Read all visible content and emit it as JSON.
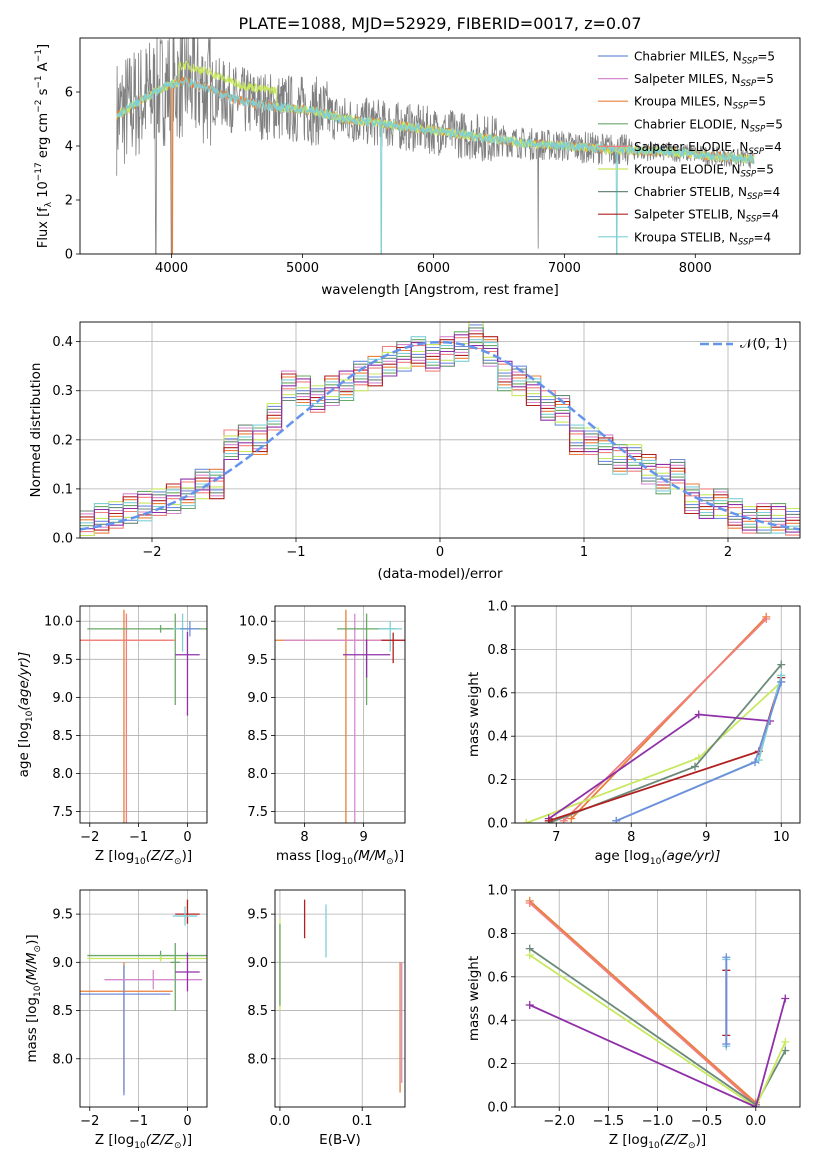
{
  "title": "PLATE=1088, MJD=52929, FIBERID=0017, z=0.07",
  "series_colors": {
    "Chabrier MILES": "#6f8fdc",
    "Salpeter MILES": "#d58ad0",
    "Kroupa MILES": "#e8803a",
    "Chabrier ELODIE": "#6aa86a",
    "Salpeter ELODIE": "#f07f7f",
    "Kroupa ELODIE": "#c8e860",
    "Chabrier STELIB": "#6b8a7a",
    "Salpeter STELIB": "#b22020",
    "Kroupa STELIB": "#7fd0d6",
    "extra": "#9030a8",
    "data": "#808080"
  },
  "chart_data": [
    {
      "id": "spectrum",
      "type": "line",
      "xlabel": "wavelength [Angstrom, rest frame]",
      "ylabel": "Flux [f",
      "ylabel_tail": " 10",
      "ylabel_unit": " erg cm",
      "ylabel_end": " s",
      "ylabel_last": " A",
      "xlim": [
        3300,
        8800
      ],
      "ylim": [
        0,
        8
      ],
      "xticks": [
        "4000",
        "5000",
        "6000",
        "7000",
        "8000"
      ],
      "yticks": [
        "0",
        "2",
        "4",
        "6"
      ],
      "legend": [
        {
          "label": "Chabrier MILES, N",
          "n": "5"
        },
        {
          "label": "Salpeter MILES, N",
          "n": "5"
        },
        {
          "label": "Kroupa MILES, N",
          "n": "5"
        },
        {
          "label": "Chabrier ELODIE, N",
          "n": "5"
        },
        {
          "label": "Salpeter ELODIE, N",
          "n": "4"
        },
        {
          "label": "Kroupa ELODIE, N",
          "n": "5"
        },
        {
          "label": "Chabrier STELIB, N",
          "n": "4"
        },
        {
          "label": "Salpeter STELIB, N",
          "n": "4"
        },
        {
          "label": "Kroupa STELIB, N",
          "n": "4"
        }
      ],
      "legend_sub": "SSP",
      "continuum": [
        [
          3580,
          5.1
        ],
        [
          3700,
          5.5
        ],
        [
          3800,
          5.8
        ],
        [
          3950,
          6.2
        ],
        [
          4100,
          6.4
        ],
        [
          4300,
          6.1
        ],
        [
          4500,
          5.7
        ],
        [
          4700,
          5.5
        ],
        [
          4900,
          5.4
        ],
        [
          5100,
          5.3
        ],
        [
          5300,
          5.0
        ],
        [
          5500,
          4.9
        ],
        [
          5800,
          4.7
        ],
        [
          6100,
          4.5
        ],
        [
          6400,
          4.3
        ],
        [
          6700,
          4.1
        ],
        [
          7000,
          4.0
        ],
        [
          7300,
          3.9
        ],
        [
          7600,
          3.8
        ],
        [
          7900,
          3.75
        ],
        [
          8200,
          3.6
        ],
        [
          8450,
          3.5
        ]
      ]
    },
    {
      "id": "residuals",
      "type": "step",
      "xlabel": "(data-model)/error",
      "ylabel": "Normed distribution",
      "xlim": [
        -2.5,
        2.5
      ],
      "ylim": [
        0,
        0.44
      ],
      "xticks": [
        "−2",
        "−1",
        "0",
        "1",
        "2"
      ],
      "yticks": [
        "0.0",
        "0.1",
        "0.2",
        "0.3",
        "0.4"
      ],
      "legend": "𝒩(0, 1)",
      "bins": [
        -2.5,
        -2.4,
        -2.3,
        -2.2,
        -2.1,
        -2.0,
        -1.9,
        -1.8,
        -1.7,
        -1.6,
        -1.5,
        -1.4,
        -1.3,
        -1.2,
        -1.1,
        -1.0,
        -0.9,
        -0.8,
        -0.7,
        -0.6,
        -0.5,
        -0.4,
        -0.3,
        -0.2,
        -0.1,
        0.0,
        0.1,
        0.2,
        0.3,
        0.4,
        0.5,
        0.6,
        0.7,
        0.8,
        0.9,
        1.0,
        1.1,
        1.2,
        1.3,
        1.4,
        1.5,
        1.6,
        1.7,
        1.8,
        1.9,
        2.0,
        2.1,
        2.2,
        2.3,
        2.4,
        2.5
      ],
      "hist": [
        0.025,
        0.04,
        0.05,
        0.06,
        0.065,
        0.07,
        0.08,
        0.09,
        0.11,
        0.11,
        0.19,
        0.2,
        0.2,
        0.25,
        0.31,
        0.3,
        0.28,
        0.3,
        0.31,
        0.33,
        0.34,
        0.36,
        0.37,
        0.38,
        0.37,
        0.38,
        0.39,
        0.41,
        0.38,
        0.33,
        0.32,
        0.3,
        0.27,
        0.26,
        0.2,
        0.2,
        0.18,
        0.16,
        0.16,
        0.14,
        0.12,
        0.13,
        0.08,
        0.07,
        0.07,
        0.05,
        0.04,
        0.04,
        0.04,
        0.03
      ]
    },
    {
      "id": "age_vs_Z",
      "type": "errorbar",
      "xlabel": "Z [log",
      "xlabel_tail": "(Z/Z",
      "ylabel": "age  [log",
      "ylabel_tail": "(age/yr)]",
      "xlim": [
        -2.2,
        0.4
      ],
      "ylim": [
        7.35,
        10.2
      ],
      "xticks": [
        "−2",
        "−1",
        "0"
      ],
      "yticks": [
        "7.5",
        "8.0",
        "8.5",
        "9.0",
        "9.5",
        "10.0"
      ],
      "points": [
        {
          "x": -1.3,
          "y": 9.75,
          "xerr": 1.0,
          "yerr": [
            2.4,
            0.4
          ],
          "c": "Kroupa MILES"
        },
        {
          "x": -1.25,
          "y": 9.75,
          "xerr": 1.0,
          "yerr": [
            2.45,
            0.35
          ],
          "c": "Salpeter ELODIE"
        },
        {
          "x": -0.55,
          "y": 9.9,
          "xerr": 1.5,
          "yerr": [
            0.05,
            0.05
          ],
          "c": "Chabrier ELODIE"
        },
        {
          "x": -0.25,
          "y": 9.9,
          "xerr": 0.3,
          "yerr": [
            1.0,
            0.2
          ],
          "c": "Chabrier ELODIE"
        },
        {
          "x": -0.1,
          "y": 9.9,
          "xerr": 0.2,
          "yerr": [
            0.3,
            0.2
          ],
          "c": "Kroupa STELIB"
        },
        {
          "x": 0.0,
          "y": 9.56,
          "xerr": 0.25,
          "yerr": [
            0.8,
            0.3
          ],
          "c": "extra"
        },
        {
          "x": 0.05,
          "y": 9.9,
          "xerr": 0.2,
          "yerr": [
            0.1,
            0.1
          ],
          "c": "Chabrier MILES"
        }
      ]
    },
    {
      "id": "age_vs_mass",
      "type": "errorbar",
      "xlabel": "mass [log",
      "xlabel_tail": "(M/M",
      "xlim": [
        7.5,
        9.7
      ],
      "ylim": [
        7.35,
        10.2
      ],
      "xticks": [
        "8",
        "9"
      ],
      "yticks": [
        "7.5",
        "8.0",
        "8.5",
        "9.0",
        "9.5",
        "10.0"
      ],
      "points": [
        {
          "x": 8.7,
          "y": 9.75,
          "xerr": 1.2,
          "yerr": [
            2.4,
            0.4
          ],
          "c": "Kroupa MILES"
        },
        {
          "x": 8.85,
          "y": 9.75,
          "xerr": 1.2,
          "yerr": [
            2.4,
            0.35
          ],
          "c": "Salpeter MILES"
        },
        {
          "x": 9.05,
          "y": 9.9,
          "xerr": 0.5,
          "yerr": [
            1.0,
            0.2
          ],
          "c": "Chabrier ELODIE"
        },
        {
          "x": 9.05,
          "y": 9.56,
          "xerr": 0.4,
          "yerr": [
            0.3,
            0.2
          ],
          "c": "extra"
        },
        {
          "x": 9.45,
          "y": 9.9,
          "xerr": 0.2,
          "yerr": [
            0.3,
            0.1
          ],
          "c": "Kroupa STELIB"
        },
        {
          "x": 9.5,
          "y": 9.75,
          "xerr": 0.2,
          "yerr": [
            0.3,
            0.1
          ],
          "c": "Salpeter STELIB"
        }
      ]
    },
    {
      "id": "massweight_vs_age",
      "type": "line",
      "xlabel": "age  [log",
      "xlabel_tail": "(age/yr)]",
      "ylabel": "mass weight",
      "xlim": [
        6.45,
        10.25
      ],
      "ylim": [
        0,
        1.0
      ],
      "xticks": [
        "7",
        "8",
        "9",
        "10"
      ],
      "yticks": [
        "0.0",
        "0.2",
        "0.4",
        "0.6",
        "0.8",
        "1.0"
      ],
      "series": [
        {
          "c": "Kroupa MILES",
          "x": [
            7.2,
            9.8
          ],
          "y": [
            0.02,
            0.95
          ]
        },
        {
          "c": "Salpeter ELODIE",
          "x": [
            7.1,
            9.8
          ],
          "y": [
            0.01,
            0.94
          ]
        },
        {
          "c": "Kroupa ELODIE",
          "x": [
            6.6,
            8.9,
            10.0
          ],
          "y": [
            0.0,
            0.3,
            0.65
          ]
        },
        {
          "c": "Chabrier STELIB",
          "x": [
            6.9,
            8.85,
            10.0
          ],
          "y": [
            0.0,
            0.26,
            0.73
          ]
        },
        {
          "c": "extra",
          "x": [
            6.9,
            8.9,
            9.85
          ],
          "y": [
            0.02,
            0.5,
            0.47
          ]
        },
        {
          "c": "Salpeter STELIB",
          "x": [
            6.9,
            9.7,
            10.0
          ],
          "y": [
            0.01,
            0.33,
            0.67
          ]
        },
        {
          "c": "Kroupa STELIB",
          "x": [
            7.8,
            9.7,
            10.0
          ],
          "y": [
            0.01,
            0.29,
            0.68
          ]
        },
        {
          "c": "Chabrier MILES",
          "x": [
            7.8,
            9.65,
            10.0
          ],
          "y": [
            0.01,
            0.28,
            0.65
          ]
        }
      ]
    },
    {
      "id": "mass_vs_Z",
      "type": "errorbar",
      "xlabel": "Z [log",
      "xlabel_tail": "(Z/Z",
      "ylabel": "mass [log",
      "ylabel_tail": "(M/M",
      "xlim": [
        -2.2,
        0.4
      ],
      "ylim": [
        7.5,
        9.75
      ],
      "xticks": [
        "−2",
        "−1",
        "0"
      ],
      "yticks": [
        "8.0",
        "8.5",
        "9.0",
        "9.5"
      ],
      "points": [
        {
          "x": -0.55,
          "y": 9.07,
          "xerr": 1.5,
          "yerr": [
            0.05,
            0.05
          ],
          "c": "Chabrier ELODIE"
        },
        {
          "x": -0.55,
          "y": 9.04,
          "xerr": 1.5,
          "yerr": [
            0.03,
            0.03
          ],
          "c": "Kroupa ELODIE"
        },
        {
          "x": -1.3,
          "y": 8.7,
          "xerr": 1.0,
          "yerr": [
            1.05,
            0.3
          ],
          "c": "Kroupa MILES"
        },
        {
          "x": -1.3,
          "y": 8.67,
          "xerr": 0.95,
          "yerr": [
            1.05,
            0.3
          ],
          "c": "Chabrier MILES"
        },
        {
          "x": -0.7,
          "y": 8.82,
          "xerr": 1.0,
          "yerr": [
            0.1,
            0.1
          ],
          "c": "Salpeter MILES"
        },
        {
          "x": -0.25,
          "y": 9.0,
          "xerr": 0.1,
          "yerr": [
            0.5,
            0.2
          ],
          "c": "Chabrier ELODIE"
        },
        {
          "x": 0.0,
          "y": 8.9,
          "xerr": 0.25,
          "yerr": [
            0.2,
            0.2
          ],
          "c": "extra"
        },
        {
          "x": 0.0,
          "y": 9.5,
          "xerr": 0.25,
          "yerr": [
            0.1,
            0.15
          ],
          "c": "Salpeter STELIB"
        },
        {
          "x": -0.05,
          "y": 9.48,
          "xerr": 0.25,
          "yerr": [
            0.1,
            0.1
          ],
          "c": "Kroupa STELIB"
        }
      ]
    },
    {
      "id": "mass_vs_ebv",
      "type": "errorbar",
      "xlabel": "E(B-V)",
      "xlim": [
        -0.006,
        0.152
      ],
      "ylim": [
        7.5,
        9.75
      ],
      "xticks": [
        "0.0",
        "0.1"
      ],
      "yticks": [
        "8.0",
        "8.5",
        "9.0",
        "9.5"
      ],
      "points": [
        {
          "x": 0.0,
          "y": 9.0,
          "yerr": [
            0.5,
            0.45
          ],
          "c": "Kroupa ELODIE"
        },
        {
          "x": 0.0,
          "y": 9.0,
          "yerr": [
            0.45,
            0.4
          ],
          "c": "Chabrier ELODIE"
        },
        {
          "x": 0.03,
          "y": 9.45,
          "yerr": [
            0.2,
            0.2
          ],
          "c": "Salpeter STELIB"
        },
        {
          "x": 0.056,
          "y": 9.3,
          "yerr": [
            0.25,
            0.3
          ],
          "c": "Kroupa STELIB"
        },
        {
          "x": 0.146,
          "y": 8.3,
          "yerr": [
            0.65,
            0.7
          ],
          "c": "Kroupa MILES"
        },
        {
          "x": 0.148,
          "y": 8.35,
          "yerr": [
            0.6,
            0.65
          ],
          "c": "Salpeter MILES"
        }
      ]
    },
    {
      "id": "massweight_vs_Z",
      "type": "line",
      "xlabel": "Z [log",
      "xlabel_tail": "(Z/Z",
      "ylabel": "mass weight",
      "xlim": [
        -2.45,
        0.45
      ],
      "ylim": [
        0,
        1.0
      ],
      "xticks": [
        "−2.0",
        "−1.5",
        "−1.0",
        "−0.5",
        "0.0"
      ],
      "yticks": [
        "0.0",
        "0.2",
        "0.4",
        "0.6",
        "0.8",
        "1.0"
      ],
      "series": [
        {
          "c": "Kroupa MILES",
          "x": [
            -2.3,
            0.0
          ],
          "y": [
            0.95,
            0.02
          ]
        },
        {
          "c": "Salpeter ELODIE",
          "x": [
            -2.3,
            0.0
          ],
          "y": [
            0.94,
            0.01
          ]
        },
        {
          "c": "Chabrier STELIB",
          "x": [
            -2.3,
            0.0,
            0.3
          ],
          "y": [
            0.73,
            0.01,
            0.26
          ]
        },
        {
          "c": "Kroupa ELODIE",
          "x": [
            -2.3,
            0.0,
            0.3
          ],
          "y": [
            0.7,
            0.0,
            0.3
          ]
        },
        {
          "c": "extra",
          "x": [
            -2.3,
            0.0,
            0.3
          ],
          "y": [
            0.47,
            0.0,
            0.5
          ]
        },
        {
          "c": "Salpeter STELIB",
          "x": [
            -0.3,
            -0.3
          ],
          "y": [
            0.33,
            0.63
          ]
        },
        {
          "c": "Kroupa STELIB",
          "x": [
            -0.3,
            -0.3
          ],
          "y": [
            0.28,
            0.68
          ]
        },
        {
          "c": "Chabrier MILES",
          "x": [
            -0.3,
            -0.3
          ],
          "y": [
            0.29,
            0.69
          ]
        }
      ]
    }
  ]
}
